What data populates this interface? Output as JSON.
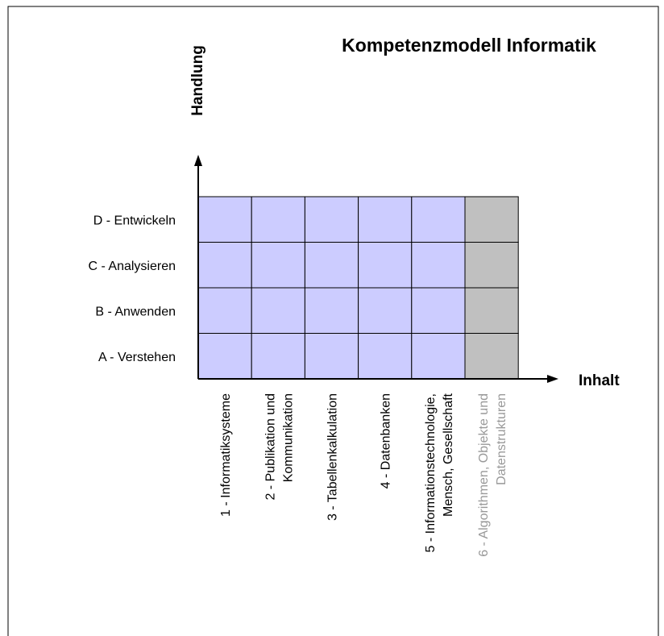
{
  "title": "Kompetenzmodell Informatik",
  "y_axis_label": "Handlung",
  "x_axis_label": "Inhalt",
  "rows": [
    "D - Entwickeln",
    "C - Analysieren",
    "B - Anwenden",
    "A - Verstehen"
  ],
  "columns": [
    {
      "lines": [
        "1 - Informatiksysteme"
      ]
    },
    {
      "lines": [
        "2 - Publikation und",
        "Kommunikation"
      ]
    },
    {
      "lines": [
        "3 - Tabellenkalkulation"
      ]
    },
    {
      "lines": [
        "4 - Datenbanken"
      ]
    },
    {
      "lines": [
        "5 - Informationstechnologie,",
        "Mensch, Gesellschaft"
      ]
    },
    {
      "lines": [
        "6 - Algorithmen, Objekte und",
        "Datenstrukturen"
      ],
      "greyed": true
    }
  ]
}
